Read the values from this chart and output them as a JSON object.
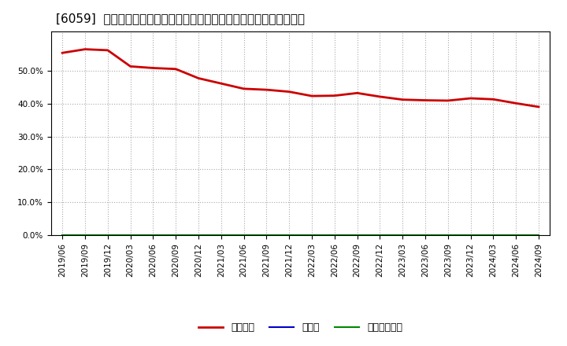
{
  "title": "[6059]  自己資本、のれん、繰延税金資産の総資産に対する比率の推移",
  "x_labels": [
    "2019/06",
    "2019/09",
    "2019/12",
    "2020/03",
    "2020/06",
    "2020/09",
    "2020/12",
    "2021/03",
    "2021/06",
    "2021/09",
    "2021/12",
    "2022/03",
    "2022/06",
    "2022/09",
    "2022/12",
    "2023/03",
    "2023/06",
    "2023/09",
    "2023/12",
    "2024/03",
    "2024/06",
    "2024/09"
  ],
  "jikoshihon": [
    0.554,
    0.565,
    0.562,
    0.513,
    0.508,
    0.505,
    0.477,
    0.461,
    0.445,
    0.442,
    0.436,
    0.423,
    0.424,
    0.432,
    0.421,
    0.412,
    0.41,
    0.409,
    0.416,
    0.413,
    0.401,
    0.39
  ],
  "noren": [
    0,
    0,
    0,
    0,
    0,
    0,
    0,
    0,
    0,
    0,
    0,
    0,
    0,
    0,
    0,
    0,
    0,
    0,
    0,
    0,
    0,
    0
  ],
  "kurinoze": [
    0,
    0,
    0,
    0,
    0,
    0,
    0,
    0,
    0,
    0,
    0,
    0,
    0,
    0,
    0,
    0,
    0,
    0,
    0,
    0,
    0,
    0
  ],
  "jikoshihon_color": "#cc0000",
  "noren_color": "#0000cc",
  "kurinoze_color": "#008800",
  "legend_label_0": "自己資本",
  "legend_label_1": "のれん",
  "legend_label_2": "繰延税金資産",
  "ylim": [
    0.0,
    0.62
  ],
  "yticks": [
    0.0,
    0.1,
    0.2,
    0.3,
    0.4,
    0.5
  ],
  "background_color": "#ffffff",
  "plot_bg_color": "#ffffff",
  "grid_color": "#aaaaaa",
  "title_fontsize": 11,
  "tick_fontsize": 7.5,
  "legend_fontsize": 9
}
